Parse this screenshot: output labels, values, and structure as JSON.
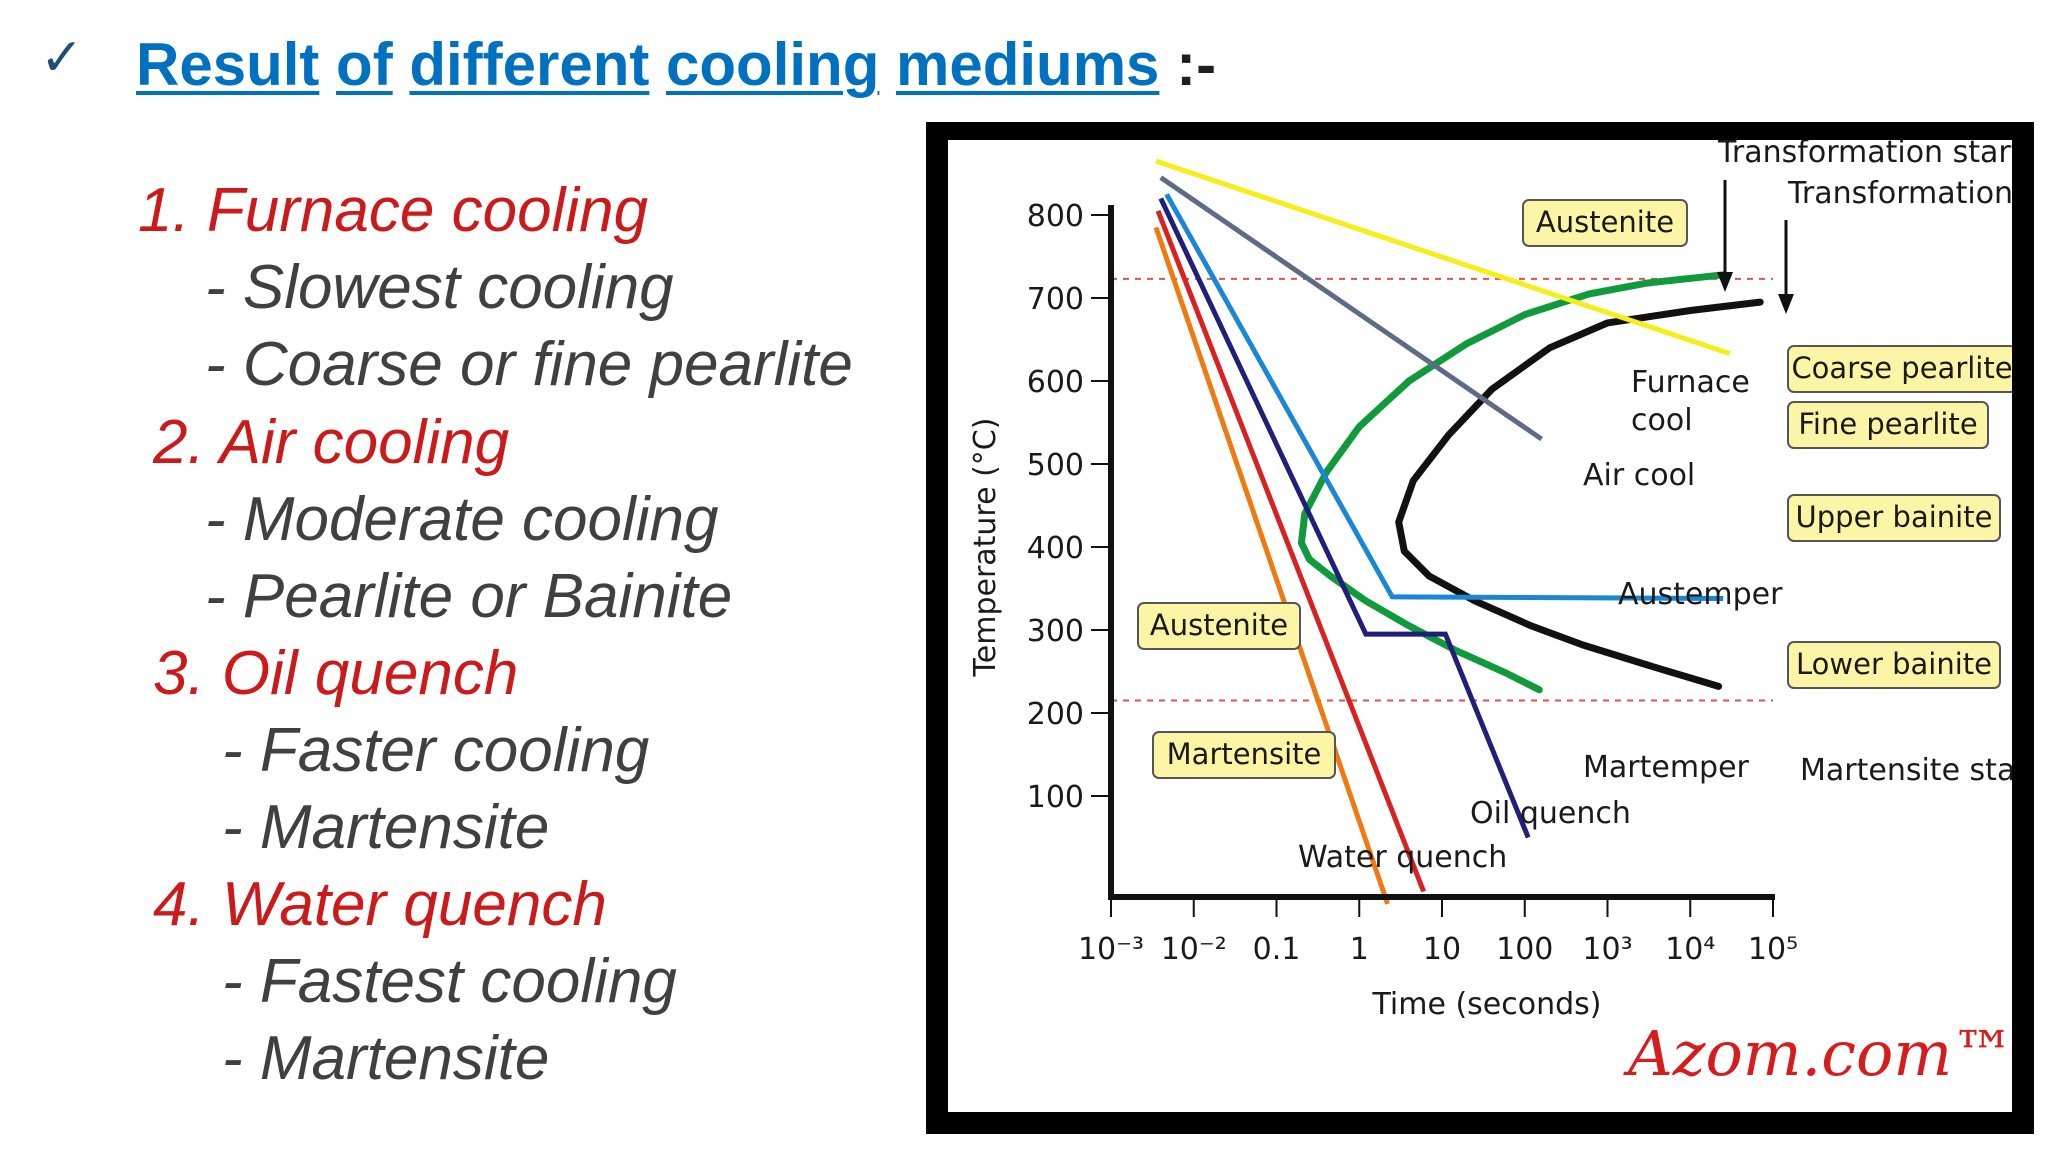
{
  "header": {
    "check_icon": "checkmark-icon",
    "title_words": [
      "Result",
      "of",
      "different",
      "cooling",
      "mediums"
    ],
    "title_suffix": ":-"
  },
  "list": [
    {
      "label": "1. Furnace cooling",
      "points": [
        "- Slowest cooling",
        "- Coarse or fine pearlite"
      ]
    },
    {
      "label": "2. Air cooling",
      "points": [
        "- Moderate cooling",
        "- Pearlite or Bainite"
      ]
    },
    {
      "label": "3. Oil quench",
      "points": [
        "- Faster cooling",
        "- Martensite"
      ]
    },
    {
      "label": "4. Water quench",
      "points": [
        "- Fastest cooling",
        "- Martensite"
      ]
    }
  ],
  "chart_data": {
    "type": "line",
    "xlabel": "Time (seconds)",
    "ylabel": "Temperature (°C)",
    "x_scale": "log",
    "xlim": [
      0.001,
      100000
    ],
    "ylim": [
      0,
      800
    ],
    "x_tick_labels": [
      "10⁻³",
      "10⁻²",
      "0.1",
      "1",
      "10",
      "100",
      "10³",
      "10⁴",
      "10⁵"
    ],
    "y_ticks": [
      100,
      200,
      300,
      400,
      500,
      600,
      700,
      800
    ],
    "reference_lines": [
      {
        "y": 723,
        "style": "dashed",
        "color": "#e05050"
      },
      {
        "y": 215,
        "style": "dashed",
        "color": "#e05050",
        "label": "Martensite start"
      }
    ],
    "curves": [
      {
        "name": "Transformation start",
        "color": "#109a3c",
        "points": [
          [
            25000,
            728
          ],
          [
            3000,
            718
          ],
          [
            600,
            705
          ],
          [
            100,
            680
          ],
          [
            20,
            645
          ],
          [
            4,
            600
          ],
          [
            1,
            545
          ],
          [
            0.4,
            490
          ],
          [
            0.22,
            440
          ],
          [
            0.2,
            405
          ],
          [
            0.25,
            385
          ],
          [
            0.45,
            365
          ],
          [
            1.2,
            335
          ],
          [
            4,
            305
          ],
          [
            15,
            275
          ],
          [
            60,
            248
          ],
          [
            150,
            228
          ]
        ]
      },
      {
        "name": "Transformation end",
        "color": "#111111",
        "points": [
          [
            70000,
            695
          ],
          [
            10000,
            685
          ],
          [
            1000,
            670
          ],
          [
            200,
            640
          ],
          [
            40,
            590
          ],
          [
            12,
            535
          ],
          [
            4.5,
            480
          ],
          [
            3,
            430
          ],
          [
            3.5,
            395
          ],
          [
            7,
            365
          ],
          [
            25,
            335
          ],
          [
            120,
            305
          ],
          [
            500,
            282
          ],
          [
            3000,
            258
          ],
          [
            22000,
            232
          ]
        ]
      }
    ],
    "series": [
      {
        "name": "Furnace cool",
        "color": "#f5ee1a",
        "points": [
          [
            0.0035,
            865
          ],
          [
            30000,
            633
          ]
        ]
      },
      {
        "name": "Air cool",
        "color": "#5d6b85",
        "points": [
          [
            0.004,
            845
          ],
          [
            160,
            530
          ]
        ]
      },
      {
        "name": "Austemper",
        "color": "#1a86d6",
        "points": [
          [
            0.0047,
            825
          ],
          [
            2.5,
            340
          ],
          [
            25000,
            338
          ]
        ]
      },
      {
        "name": "Martemper",
        "color": "#201f7a",
        "points": [
          [
            0.004,
            820
          ],
          [
            1.2,
            295
          ],
          [
            11,
            295
          ],
          [
            110,
            50
          ]
        ]
      },
      {
        "name": "Oil quench",
        "color": "#d82222",
        "points": [
          [
            0.0037,
            805
          ],
          [
            6,
            -15
          ]
        ]
      },
      {
        "name": "Water quench",
        "color": "#f07a12",
        "points": [
          [
            0.0035,
            785
          ],
          [
            2.2,
            -30
          ]
        ]
      }
    ],
    "line_labels": [
      {
        "text": "Furnace",
        "series": "Furnace cool"
      },
      {
        "text": "cool",
        "series": "Furnace cool"
      },
      {
        "text": "Air cool",
        "series": "Air cool"
      },
      {
        "text": "Austemper",
        "series": "Austemper"
      },
      {
        "text": "Martemper",
        "series": "Martemper"
      },
      {
        "text": "Oil quench",
        "series": "Oil quench"
      },
      {
        "text": "Water quench",
        "series": "Water quench"
      },
      {
        "text": "Transformation start",
        "series": "Transformation start"
      },
      {
        "text": "Transformation end",
        "series": "Transformation end"
      },
      {
        "text": "Martensite start",
        "series": ""
      }
    ],
    "phase_boxes": [
      "Austenite",
      "Coarse pearlite",
      "Fine pearlite",
      "Upper bainite",
      "Lower bainite",
      "Austenite",
      "Martensite"
    ],
    "phase_box_fill": "#fdf5a6",
    "watermark": "Azom.com™"
  }
}
